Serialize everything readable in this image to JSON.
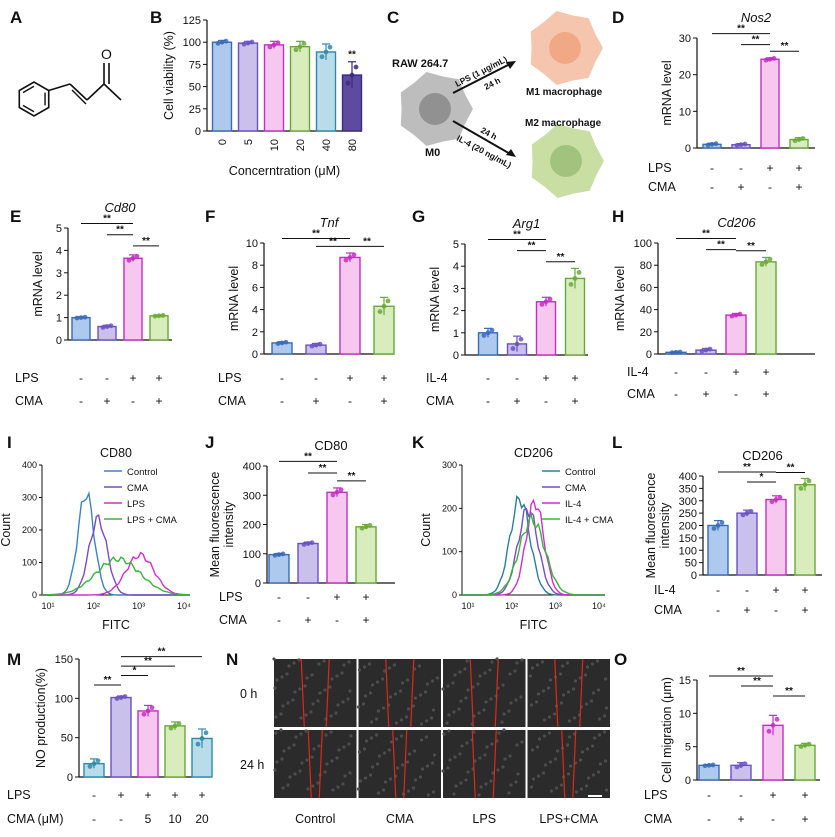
{
  "colors": {
    "c1": "#aec9ee",
    "c1s": "#3a6bb5",
    "c2": "#c9c0ec",
    "c2s": "#6a52c2",
    "c3": "#f6c8f0",
    "c3s": "#c22ec2",
    "c4": "#d8ecbc",
    "c4s": "#6aa83a",
    "c5": "#b9dceb",
    "c5s": "#2f8aa8",
    "c6": "#5e4aa0",
    "c6s": "#3a2c7a",
    "line_ctrl": "#3a82c6",
    "line_cma": "#7a4cc0",
    "line_lps": "#d12fd1",
    "line_combo": "#3bb43b"
  },
  "panels": {
    "A": {
      "letter": "A",
      "chemical": "cinnamaldehyde (skeletal structure)",
      "atom": "O"
    },
    "C": {
      "letter": "C",
      "raw": "RAW 264.7",
      "m0": "M0",
      "m1": "M1 macrophage",
      "m2": "M2 macrophage",
      "lps_arrow": "LPS (1 μg/mL)",
      "h24_top": "24 h",
      "h24_bottom": "24 h",
      "il4_arrow": "IL-4 (20 ng/mL)"
    },
    "I": {
      "letter": "I",
      "title": "CD80",
      "ylabel": "Count",
      "xlabel": "FITC",
      "yticks": [
        "0",
        "100",
        "200",
        "300",
        "400"
      ],
      "xticks": [
        "10¹",
        "10²",
        "10³",
        "10⁴"
      ],
      "legend": [
        "Control",
        "CMA",
        "LPS",
        "LPS + CMA"
      ]
    },
    "K": {
      "letter": "K",
      "title": "CD206",
      "ylabel": "Count",
      "xlabel": "FITC",
      "yticks": [
        "0",
        "100",
        "200",
        "300"
      ],
      "xticks": [
        "10¹",
        "10²",
        "10³",
        "10⁴"
      ],
      "legend": [
        "Control",
        "CMA",
        "IL-4",
        "IL-4 + CMA"
      ]
    },
    "N": {
      "letter": "N",
      "row_labels": [
        "0 h",
        "24 h"
      ],
      "col_labels": [
        "Control",
        "CMA",
        "LPS",
        "LPS+CMA"
      ]
    }
  },
  "chart_data": [
    {
      "id": "B",
      "type": "bar",
      "title": "",
      "xlabel": "Concerntration (μM)",
      "ylabel": "Cell viability (%)",
      "categories": [
        "0",
        "5",
        "10",
        "20",
        "40",
        "80"
      ],
      "values": [
        100,
        99,
        97,
        95,
        89,
        63
      ],
      "errors": [
        2,
        2,
        4,
        6,
        9,
        15
      ],
      "ylim": [
        0,
        125
      ],
      "yticks": [
        0,
        25,
        50,
        75,
        100,
        125
      ],
      "sig": [
        {
          "bar": 5,
          "text": "**"
        }
      ]
    },
    {
      "id": "D",
      "type": "bar",
      "title": "Nos2",
      "ylabel": "mRNA level",
      "values": [
        1.0,
        0.9,
        24.2,
        2.3
      ],
      "errors": [
        0.3,
        0.3,
        0.4,
        0.5
      ],
      "ylim": [
        0,
        30
      ],
      "yticks": [
        0,
        10,
        20,
        30
      ],
      "conditions": [
        {
          "name": "LPS",
          "marks": [
            "-",
            "-",
            "+",
            "+"
          ]
        },
        {
          "name": "CMA",
          "marks": [
            "-",
            "+",
            "-",
            "+"
          ]
        }
      ],
      "brackets": [
        {
          "from": 0,
          "to": 2,
          "text": "**"
        },
        {
          "from": 1,
          "to": 2,
          "text": "**"
        },
        {
          "from": 2,
          "to": 3,
          "text": "**"
        }
      ]
    },
    {
      "id": "E",
      "type": "bar",
      "title": "Cd80",
      "ylabel": "mRNA level",
      "values": [
        1.0,
        0.6,
        3.65,
        1.08
      ],
      "errors": [
        0.03,
        0.06,
        0.15,
        0.03
      ],
      "ylim": [
        0,
        5
      ],
      "yticks": [
        0,
        1,
        2,
        3,
        4,
        5
      ],
      "conditions": [
        {
          "name": "LPS",
          "marks": [
            "-",
            "-",
            "+",
            "+"
          ]
        },
        {
          "name": "CMA",
          "marks": [
            "-",
            "+",
            "-",
            "+"
          ]
        }
      ],
      "brackets": [
        {
          "from": 0,
          "to": 2,
          "text": "**"
        },
        {
          "from": 1,
          "to": 2,
          "text": "**"
        },
        {
          "from": 2,
          "to": 3,
          "text": "**"
        }
      ]
    },
    {
      "id": "F",
      "type": "bar",
      "title": "Tnf",
      "ylabel": "mRNA level",
      "values": [
        1.0,
        0.8,
        8.7,
        4.3
      ],
      "errors": [
        0.1,
        0.15,
        0.4,
        0.8
      ],
      "ylim": [
        0,
        10
      ],
      "yticks": [
        0,
        2,
        4,
        6,
        8,
        10
      ],
      "conditions": [
        {
          "name": "LPS",
          "marks": [
            "-",
            "-",
            "+",
            "+"
          ]
        },
        {
          "name": "CMA",
          "marks": [
            "-",
            "+",
            "-",
            "+"
          ]
        }
      ],
      "brackets": [
        {
          "from": 0,
          "to": 2,
          "text": "**"
        },
        {
          "from": 1,
          "to": 2,
          "text": "**"
        },
        {
          "from": 2,
          "to": 3,
          "text": "**"
        }
      ]
    },
    {
      "id": "G",
      "type": "bar",
      "title": "Arg1",
      "ylabel": "mRNA level",
      "values": [
        1.0,
        0.5,
        2.4,
        3.45
      ],
      "errors": [
        0.2,
        0.35,
        0.2,
        0.45
      ],
      "ylim": [
        0,
        5
      ],
      "yticks": [
        0,
        1,
        2,
        3,
        4,
        5
      ],
      "conditions": [
        {
          "name": "IL-4",
          "marks": [
            "-",
            "-",
            "+",
            "+"
          ]
        },
        {
          "name": "CMA",
          "marks": [
            "-",
            "+",
            "-",
            "+"
          ]
        }
      ],
      "brackets": [
        {
          "from": 0,
          "to": 2,
          "text": "**"
        },
        {
          "from": 1,
          "to": 2,
          "text": "**"
        },
        {
          "from": 2,
          "to": 3,
          "text": "**"
        }
      ]
    },
    {
      "id": "H",
      "type": "bar",
      "title": "Cd206",
      "ylabel": "mRNA level",
      "values": [
        1.5,
        3.5,
        35,
        83
      ],
      "errors": [
        0.5,
        1.5,
        1.5,
        4
      ],
      "ylim": [
        0,
        100
      ],
      "yticks": [
        0,
        20,
        40,
        60,
        80,
        100
      ],
      "conditions": [
        {
          "name": "IL-4",
          "marks": [
            "-",
            "-",
            "+",
            "+"
          ]
        },
        {
          "name": "CMA",
          "marks": [
            "-",
            "+",
            "-",
            "+"
          ]
        }
      ],
      "brackets": [
        {
          "from": 0,
          "to": 2,
          "text": "**"
        },
        {
          "from": 1,
          "to": 2,
          "text": "**"
        },
        {
          "from": 2,
          "to": 3,
          "text": "**"
        }
      ]
    },
    {
      "id": "J",
      "type": "bar",
      "title": "CD80",
      "ylabel": "Mean fluorescence intensity",
      "values": [
        97,
        135,
        310,
        192
      ],
      "errors": [
        4,
        5,
        15,
        8
      ],
      "ylim": [
        0,
        400
      ],
      "yticks": [
        0,
        100,
        200,
        300,
        400
      ],
      "conditions": [
        {
          "name": "LPS",
          "marks": [
            "-",
            "-",
            "+",
            "+"
          ]
        },
        {
          "name": "CMA",
          "marks": [
            "-",
            "+",
            "-",
            "+"
          ]
        }
      ],
      "brackets": [
        {
          "from": 0,
          "to": 2,
          "text": "**"
        },
        {
          "from": 1,
          "to": 2,
          "text": "**"
        },
        {
          "from": 2,
          "to": 3,
          "text": "**"
        }
      ]
    },
    {
      "id": "L",
      "type": "bar",
      "title": "CD206",
      "ylabel": "Mean fluorescence intensity",
      "values": [
        200,
        250,
        305,
        365
      ],
      "errors": [
        20,
        12,
        15,
        25
      ],
      "ylim": [
        0,
        400
      ],
      "yticks": [
        0,
        50,
        100,
        150,
        200,
        250,
        300,
        350,
        400
      ],
      "conditions": [
        {
          "name": "IL-4",
          "marks": [
            "-",
            "-",
            "+",
            "+"
          ]
        },
        {
          "name": "CMA",
          "marks": [
            "-",
            "+",
            "-",
            "+"
          ]
        }
      ],
      "brackets": [
        {
          "from": 0,
          "to": 2,
          "text": "**"
        },
        {
          "from": 1,
          "to": 2,
          "text": "*"
        },
        {
          "from": 2,
          "to": 3,
          "text": "**"
        }
      ]
    },
    {
      "id": "M",
      "type": "bar",
      "title": "",
      "ylabel": "NO production(%)",
      "values": [
        17,
        101,
        84,
        65,
        49
      ],
      "errors": [
        6,
        2,
        7,
        5,
        12
      ],
      "ylim": [
        0,
        150
      ],
      "yticks": [
        0,
        50,
        100,
        150
      ],
      "conditions": [
        {
          "name": "LPS",
          "marks": [
            "-",
            "+",
            "+",
            "+",
            "+"
          ]
        },
        {
          "name": "CMA (μM)",
          "marks": [
            "-",
            "-",
            "5",
            "10",
            "20"
          ]
        }
      ],
      "brackets": [
        {
          "from": 0,
          "to": 1,
          "text": "**"
        },
        {
          "from": 1,
          "to": 2,
          "text": "*"
        },
        {
          "from": 1,
          "to": 3,
          "text": "**"
        },
        {
          "from": 1,
          "to": 4,
          "text": "**"
        }
      ]
    },
    {
      "id": "O",
      "type": "bar",
      "title": "",
      "ylabel": "Cell migration (μm)",
      "values": [
        2.2,
        2.2,
        8.2,
        5.2
      ],
      "errors": [
        0.1,
        0.4,
        1.5,
        0.3
      ],
      "ylim": [
        0,
        15
      ],
      "yticks": [
        0,
        5,
        10,
        15
      ],
      "conditions": [
        {
          "name": "LPS",
          "marks": [
            "-",
            "-",
            "+",
            "+"
          ]
        },
        {
          "name": "CMA",
          "marks": [
            "-",
            "+",
            "-",
            "+"
          ]
        }
      ],
      "brackets": [
        {
          "from": 0,
          "to": 2,
          "text": "**"
        },
        {
          "from": 1,
          "to": 2,
          "text": "**"
        },
        {
          "from": 2,
          "to": 3,
          "text": "**"
        }
      ]
    }
  ]
}
